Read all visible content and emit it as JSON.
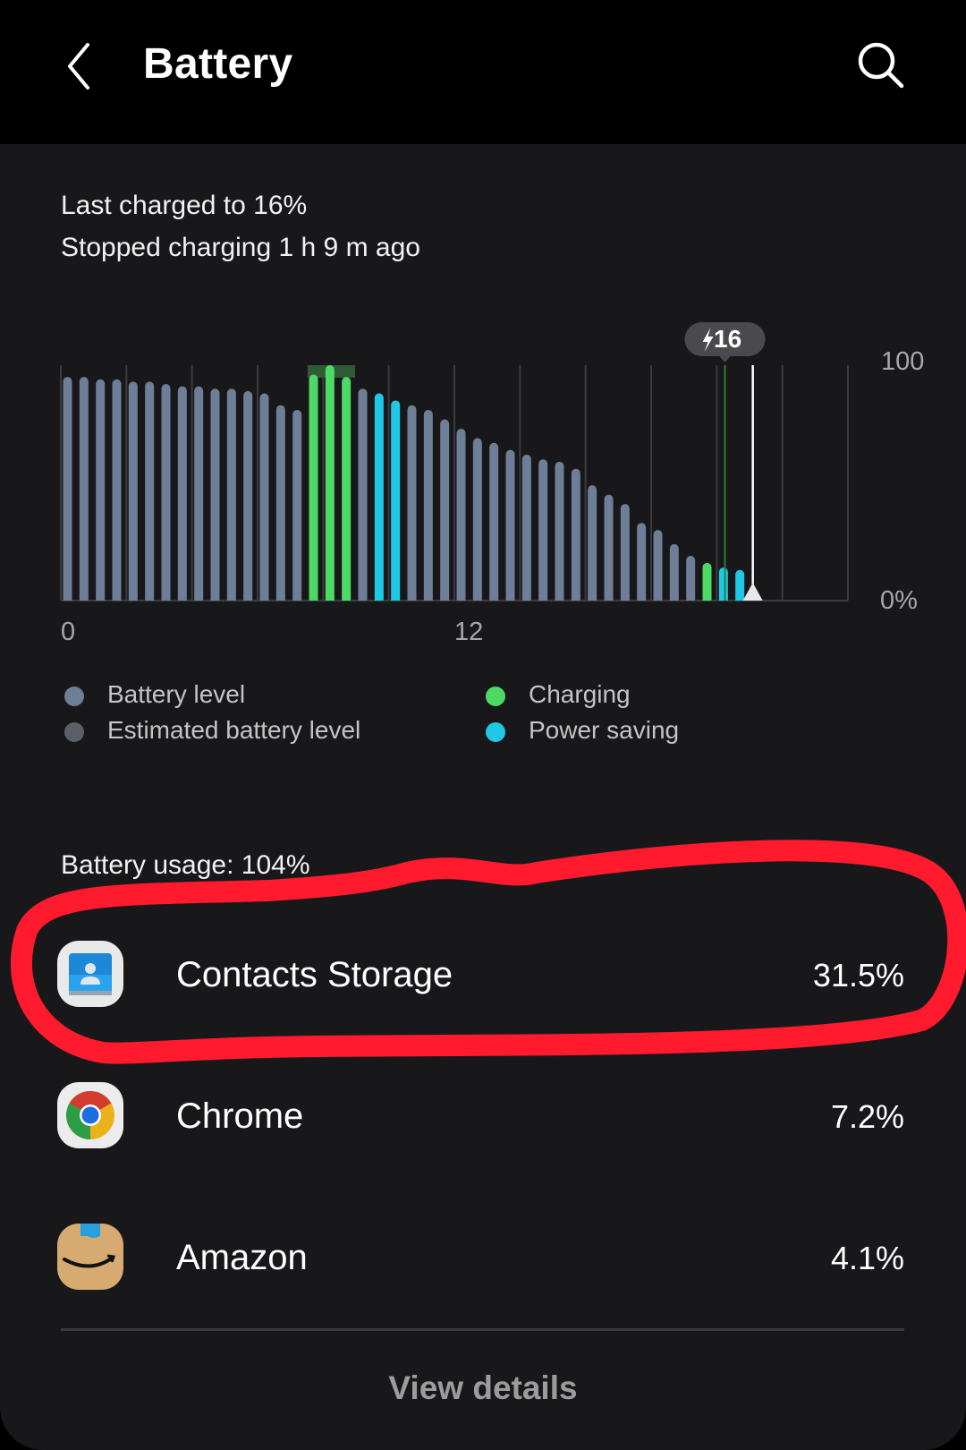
{
  "header": {
    "title": "Battery",
    "back_icon": "chevron-left-icon",
    "search_icon": "search-icon"
  },
  "status": {
    "last_charged": "Last charged to 16%",
    "stopped_charging": "Stopped charging 1 h 9 m ago"
  },
  "chart_data": {
    "type": "bar",
    "x_unit": "hours",
    "xlim": [
      0,
      24
    ],
    "x_ticks": [
      "0",
      "12"
    ],
    "y_labels": [
      "100",
      "0%"
    ],
    "ylim": [
      0,
      100
    ],
    "grid": true,
    "bar_interval_hours": 0.5,
    "values": [
      95,
      95,
      94,
      94,
      93,
      93,
      92,
      91,
      91,
      90,
      90,
      89,
      88,
      83,
      81,
      96,
      100,
      95,
      90,
      88,
      85,
      83,
      81,
      77,
      73,
      69,
      67,
      64,
      62,
      60,
      59,
      56,
      49,
      45,
      41,
      33,
      30,
      24,
      19,
      16,
      14,
      13
    ],
    "states": [
      "b",
      "b",
      "b",
      "b",
      "b",
      "b",
      "b",
      "b",
      "b",
      "b",
      "b",
      "b",
      "b",
      "b",
      "b",
      "c",
      "c",
      "c",
      "b",
      "p",
      "p",
      "b",
      "b",
      "b",
      "b",
      "b",
      "b",
      "b",
      "b",
      "b",
      "b",
      "b",
      "b",
      "b",
      "b",
      "b",
      "b",
      "b",
      "b",
      "c",
      "p",
      "p"
    ],
    "tooltip": {
      "icon": "lightning-icon",
      "value": "16"
    },
    "colors": {
      "b": "#6e7e96",
      "c": "#4cd964",
      "p": "#1ec8e6",
      "estimated": "#5a5f68"
    }
  },
  "legend": [
    {
      "label": "Battery level",
      "color": "#6e7e96"
    },
    {
      "label": "Estimated battery level",
      "color": "#5a5f68"
    },
    {
      "label": "Charging",
      "color": "#4cd964"
    },
    {
      "label": "Power saving",
      "color": "#1ec8e6"
    }
  ],
  "usage": {
    "label": "Battery usage: 104%"
  },
  "apps": [
    {
      "name": "Contacts Storage",
      "percent": "31.5%",
      "icon": "contacts-storage-icon"
    },
    {
      "name": "Chrome",
      "percent": "7.2%",
      "icon": "chrome-icon"
    },
    {
      "name": "Amazon",
      "percent": "4.1%",
      "icon": "amazon-icon"
    }
  ],
  "view_details": "View details",
  "annotation_color": "#ff1a2e"
}
